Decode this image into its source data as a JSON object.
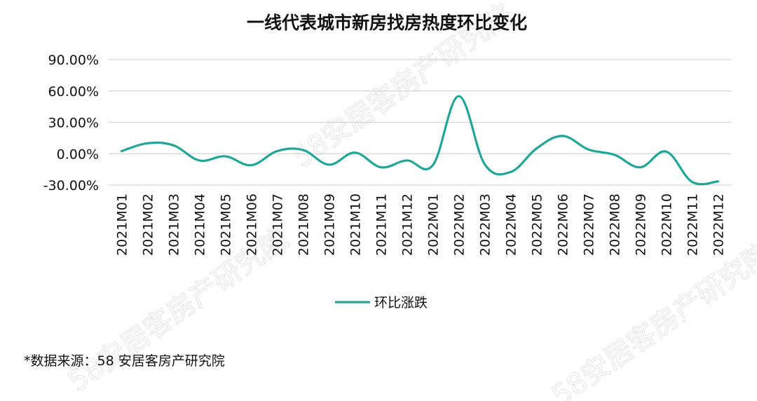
{
  "watermark": "58安居客房产研究院",
  "source_note": "*数据来源：58 安居客房产研究院",
  "colors": {
    "series": "#21a696",
    "grid": "#d4d4d4",
    "text": "#111111"
  },
  "chart_data": {
    "type": "line",
    "title": "一线代表城市新房找房热度环比变化",
    "xlabel": "",
    "ylabel": "",
    "ylim": [
      -30,
      90
    ],
    "yticks": [
      -30,
      0,
      30,
      60,
      90
    ],
    "ytick_labels": [
      "-30.00%",
      "0.00%",
      "30.00%",
      "60.00%",
      "90.00%"
    ],
    "grid": "horizontal",
    "legend_position": "bottom",
    "categories": [
      "2021M01",
      "2021M02",
      "2021M03",
      "2021M04",
      "2021M05",
      "2021M06",
      "2021M07",
      "2021M08",
      "2021M09",
      "2021M10",
      "2021M11",
      "2021M12",
      "2022M01",
      "2022M02",
      "2022M03",
      "2022M04",
      "2022M05",
      "2022M06",
      "2022M07",
      "2022M08",
      "2022M09",
      "2022M10",
      "2022M11",
      "2022M12"
    ],
    "series": [
      {
        "name": "环比涨跌",
        "values": [
          2.5,
          10.0,
          8.0,
          -6.5,
          -2.5,
          -11.0,
          2.5,
          3.5,
          -10.5,
          1.0,
          -13.0,
          -6.5,
          -11.0,
          55.0,
          -10.0,
          -17.5,
          5.0,
          17.0,
          4.0,
          -1.0,
          -13.0,
          2.0,
          -27.0,
          -26.5
        ]
      }
    ]
  }
}
